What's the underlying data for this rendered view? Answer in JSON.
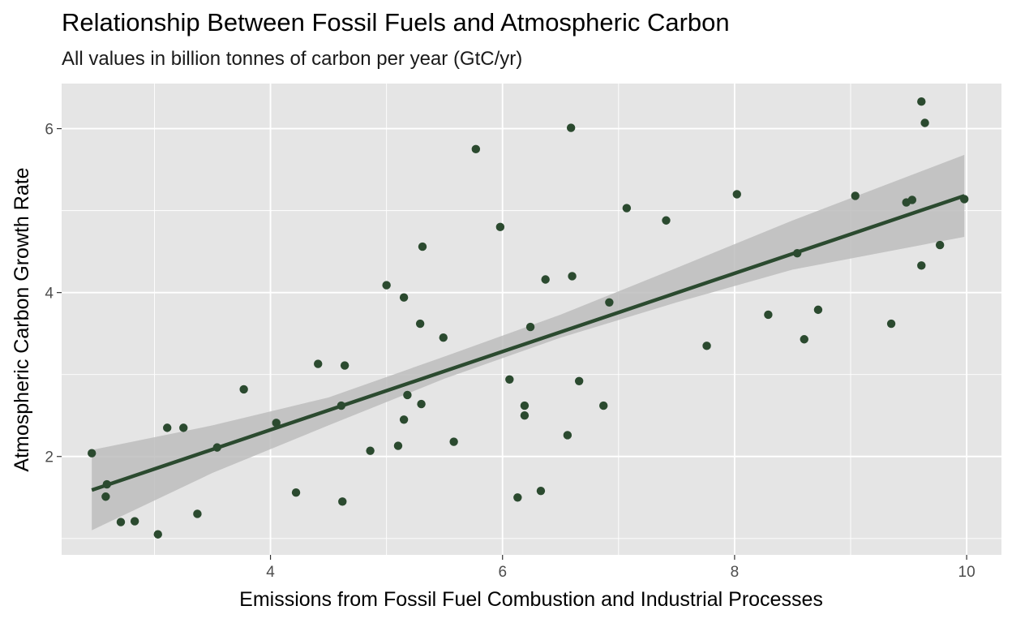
{
  "chart_data": {
    "type": "scatter",
    "title": "Relationship Between Fossil Fuels and Atmospheric Carbon",
    "subtitle": "All values in billion tonnes of carbon per year (GtC/yr)",
    "xlabel": "Emissions from Fossil Fuel Combustion and Industrial Processes",
    "ylabel": "Atmospheric Carbon Growth Rate",
    "xlim": [
      2.2,
      10.3
    ],
    "ylim": [
      0.8,
      6.55
    ],
    "x_ticks": [
      4,
      6,
      8,
      10
    ],
    "y_ticks": [
      2,
      4,
      6
    ],
    "x_tick_labels": [
      "4",
      "6",
      "8",
      "10"
    ],
    "y_tick_labels": [
      "2",
      "4",
      "6"
    ],
    "grid": true,
    "legend": "none",
    "colors": {
      "panel": "#e5e5e5",
      "grid": "#ffffff",
      "points": "#2b4a2f",
      "trend_line": "#2b4a2f",
      "ribbon": "#bdbdbd"
    },
    "points": [
      {
        "x": 2.46,
        "y": 2.04
      },
      {
        "x": 2.59,
        "y": 1.66
      },
      {
        "x": 2.58,
        "y": 1.51
      },
      {
        "x": 2.71,
        "y": 1.2
      },
      {
        "x": 2.83,
        "y": 1.21
      },
      {
        "x": 3.03,
        "y": 1.05
      },
      {
        "x": 3.11,
        "y": 2.35
      },
      {
        "x": 3.25,
        "y": 2.35
      },
      {
        "x": 3.37,
        "y": 1.3
      },
      {
        "x": 3.54,
        "y": 2.11
      },
      {
        "x": 3.77,
        "y": 2.82
      },
      {
        "x": 4.05,
        "y": 2.41
      },
      {
        "x": 4.22,
        "y": 1.56
      },
      {
        "x": 4.41,
        "y": 3.13
      },
      {
        "x": 4.61,
        "y": 2.62
      },
      {
        "x": 4.62,
        "y": 1.45
      },
      {
        "x": 4.64,
        "y": 3.11
      },
      {
        "x": 4.86,
        "y": 2.07
      },
      {
        "x": 5.0,
        "y": 4.09
      },
      {
        "x": 5.1,
        "y": 2.13
      },
      {
        "x": 5.15,
        "y": 2.45
      },
      {
        "x": 5.15,
        "y": 3.94
      },
      {
        "x": 5.18,
        "y": 2.75
      },
      {
        "x": 5.29,
        "y": 3.62
      },
      {
        "x": 5.3,
        "y": 2.64
      },
      {
        "x": 5.31,
        "y": 4.56
      },
      {
        "x": 5.49,
        "y": 3.45
      },
      {
        "x": 5.58,
        "y": 2.18
      },
      {
        "x": 5.77,
        "y": 5.75
      },
      {
        "x": 5.98,
        "y": 4.8
      },
      {
        "x": 6.06,
        "y": 2.94
      },
      {
        "x": 6.13,
        "y": 1.5
      },
      {
        "x": 6.19,
        "y": 2.62
      },
      {
        "x": 6.19,
        "y": 2.5
      },
      {
        "x": 6.24,
        "y": 3.58
      },
      {
        "x": 6.33,
        "y": 1.58
      },
      {
        "x": 6.37,
        "y": 4.16
      },
      {
        "x": 6.56,
        "y": 2.26
      },
      {
        "x": 6.59,
        "y": 6.01
      },
      {
        "x": 6.6,
        "y": 4.2
      },
      {
        "x": 6.66,
        "y": 2.92
      },
      {
        "x": 6.87,
        "y": 2.62
      },
      {
        "x": 6.92,
        "y": 3.88
      },
      {
        "x": 7.07,
        "y": 5.03
      },
      {
        "x": 7.41,
        "y": 4.88
      },
      {
        "x": 7.76,
        "y": 3.35
      },
      {
        "x": 8.02,
        "y": 5.2
      },
      {
        "x": 8.29,
        "y": 3.73
      },
      {
        "x": 8.54,
        "y": 4.48
      },
      {
        "x": 8.6,
        "y": 3.43
      },
      {
        "x": 8.72,
        "y": 3.79
      },
      {
        "x": 9.04,
        "y": 5.18
      },
      {
        "x": 9.35,
        "y": 3.62
      },
      {
        "x": 9.48,
        "y": 5.1
      },
      {
        "x": 9.53,
        "y": 5.13
      },
      {
        "x": 9.61,
        "y": 6.33
      },
      {
        "x": 9.61,
        "y": 4.33
      },
      {
        "x": 9.64,
        "y": 6.07
      },
      {
        "x": 9.77,
        "y": 4.58
      },
      {
        "x": 9.98,
        "y": 5.14
      }
    ],
    "trend": {
      "method": "linear",
      "start": {
        "x": 2.46,
        "y": 1.59
      },
      "end": {
        "x": 9.98,
        "y": 5.18
      }
    },
    "confidence_band": [
      {
        "x": 2.46,
        "lo": 1.1,
        "hi": 2.08
      },
      {
        "x": 3.5,
        "lo": 1.8,
        "hi": 2.38
      },
      {
        "x": 4.5,
        "lo": 2.38,
        "hi": 2.72
      },
      {
        "x": 5.5,
        "lo": 2.95,
        "hi": 3.22
      },
      {
        "x": 6.5,
        "lo": 3.45,
        "hi": 3.73
      },
      {
        "x": 7.5,
        "lo": 3.88,
        "hi": 4.3
      },
      {
        "x": 8.5,
        "lo": 4.28,
        "hi": 4.88
      },
      {
        "x": 9.98,
        "lo": 4.68,
        "hi": 5.68
      }
    ]
  }
}
